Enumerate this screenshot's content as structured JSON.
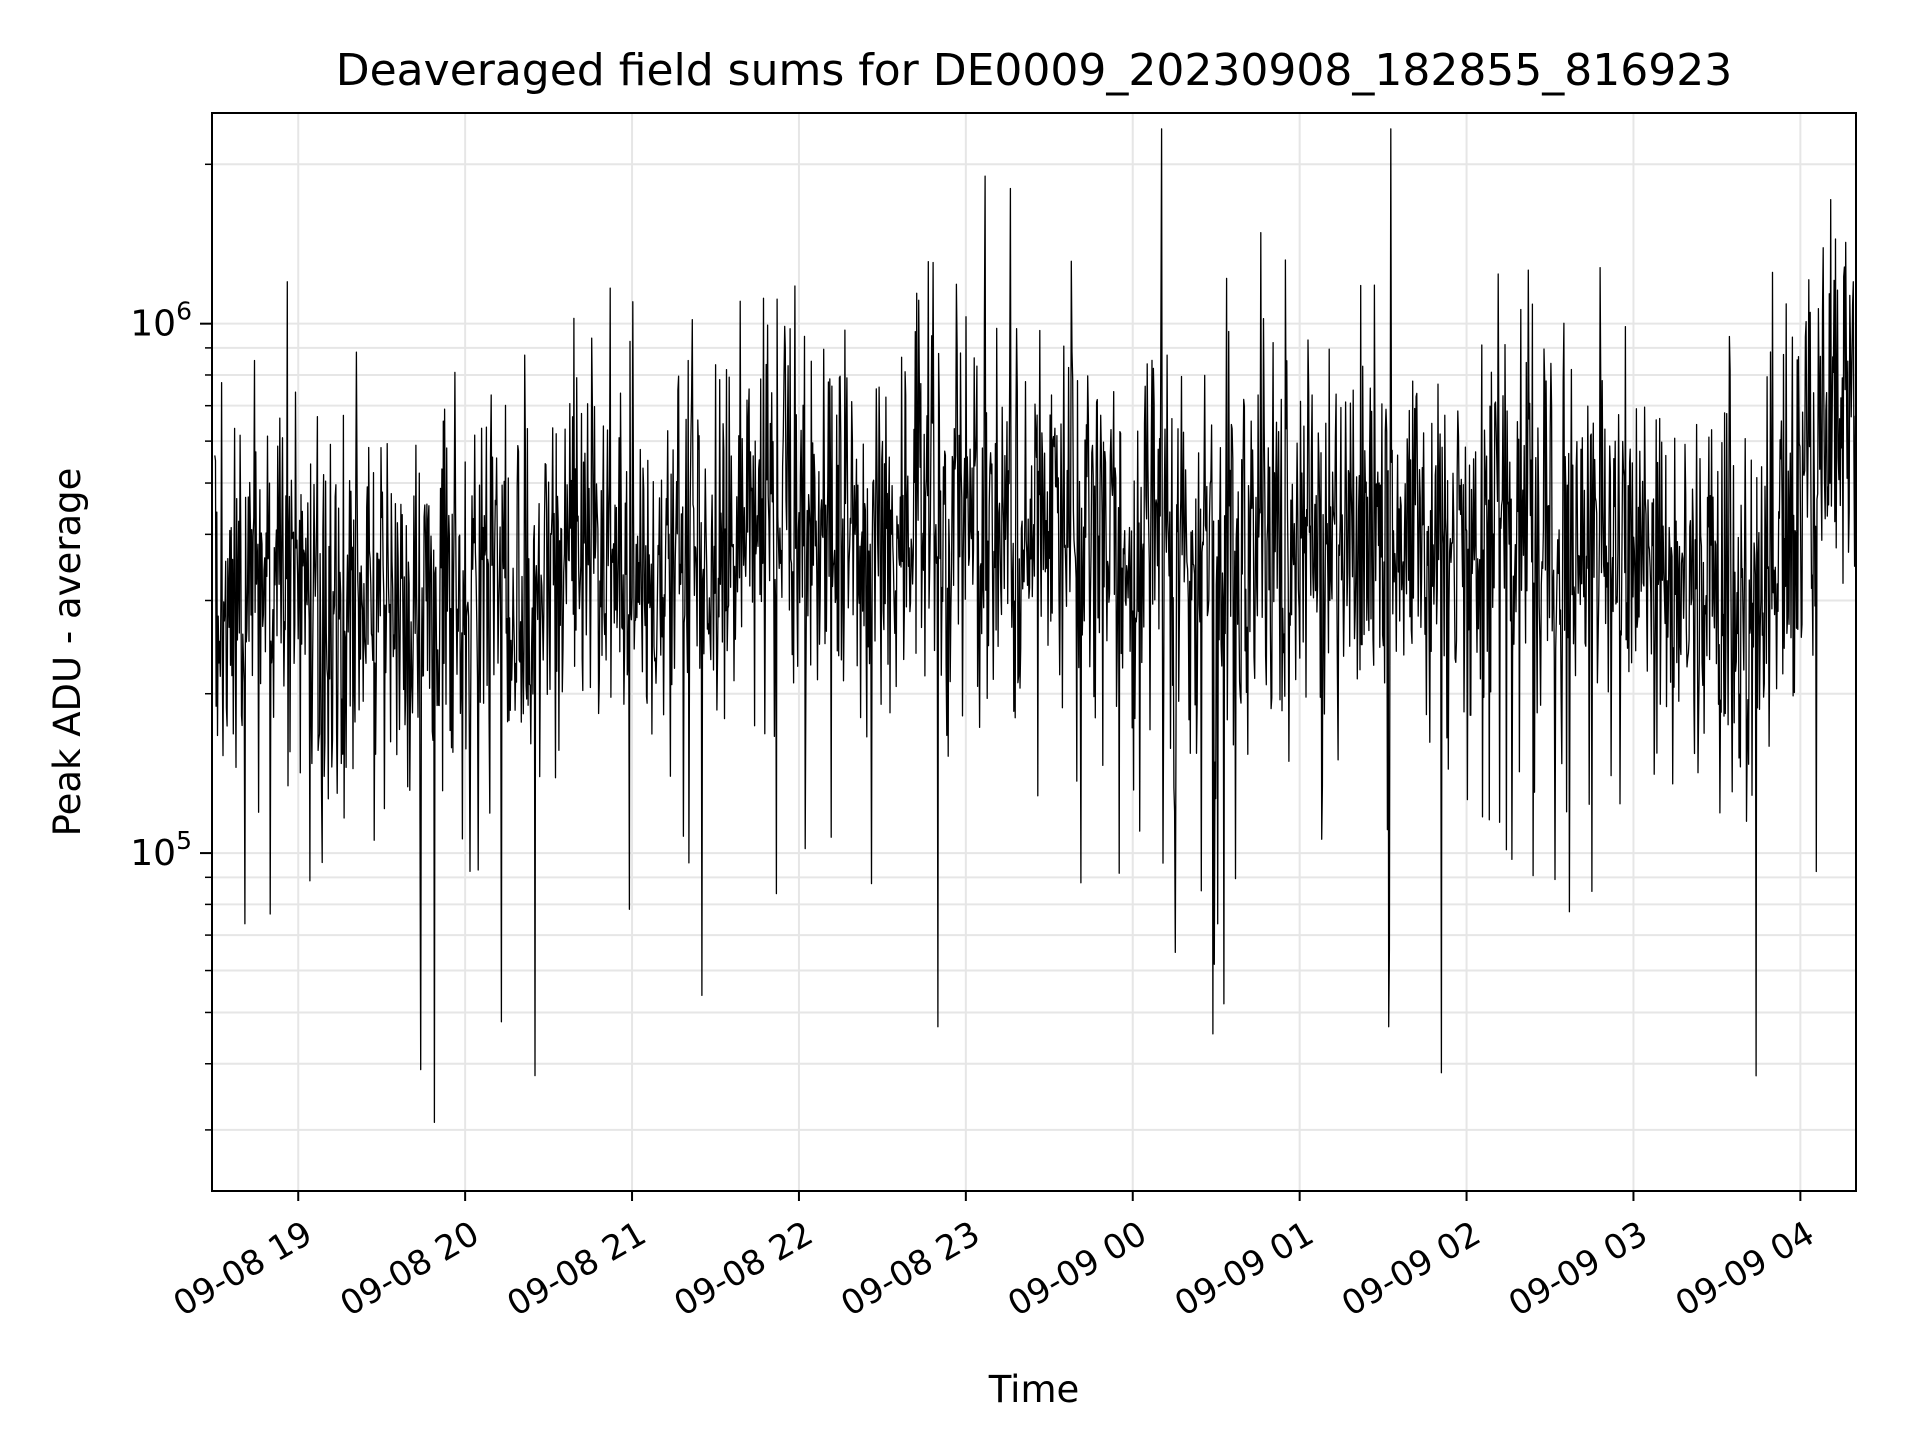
{
  "chart_data": {
    "type": "line",
    "title": "Deaveraged field sums for DE0009_20230908_182855_816923",
    "xlabel": "Time",
    "ylabel": "Peak ADU - average",
    "xlim": [
      "2023-09-08 18:29",
      "2023-09-09 04:20"
    ],
    "ylim": [
      23000,
      2500000
    ],
    "y_scale": "log",
    "grid": true,
    "line_color": "#000000",
    "grid_color": "#e6e6e6",
    "x_ticks": [
      {
        "t": "2023-09-08 19:00",
        "label": "09-08 19"
      },
      {
        "t": "2023-09-08 20:00",
        "label": "09-08 20"
      },
      {
        "t": "2023-09-08 21:00",
        "label": "09-08 21"
      },
      {
        "t": "2023-09-08 22:00",
        "label": "09-08 22"
      },
      {
        "t": "2023-09-08 23:00",
        "label": "09-08 23"
      },
      {
        "t": "2023-09-09 00:00",
        "label": "09-09 00"
      },
      {
        "t": "2023-09-09 01:00",
        "label": "09-09 01"
      },
      {
        "t": "2023-09-09 02:00",
        "label": "09-09 02"
      },
      {
        "t": "2023-09-09 03:00",
        "label": "09-09 03"
      },
      {
        "t": "2023-09-09 04:00",
        "label": "09-09 04"
      }
    ],
    "y_major_ticks": [
      {
        "value": 100000,
        "base": "10",
        "exp": "5"
      },
      {
        "value": 1000000,
        "base": "10",
        "exp": "6"
      }
    ],
    "y_minor_ticks": [
      30000,
      40000,
      50000,
      60000,
      70000,
      80000,
      90000,
      200000,
      300000,
      400000,
      500000,
      600000,
      700000,
      800000,
      900000,
      2000000
    ],
    "series": [
      {
        "x": [
          "2023-09-08 18:30",
          "2023-09-08 18:45",
          "2023-09-08 19:00",
          "2023-09-08 19:15",
          "2023-09-08 19:30",
          "2023-09-08 19:45",
          "2023-09-08 20:00",
          "2023-09-08 20:15",
          "2023-09-08 20:30",
          "2023-09-08 20:45",
          "2023-09-08 21:00",
          "2023-09-08 21:15",
          "2023-09-08 21:30",
          "2023-09-08 21:45",
          "2023-09-08 22:00",
          "2023-09-08 22:15",
          "2023-09-08 22:30",
          "2023-09-08 22:45",
          "2023-09-08 23:00",
          "2023-09-08 23:15",
          "2023-09-08 23:30",
          "2023-09-08 23:45",
          "2023-09-09 00:00",
          "2023-09-09 00:15",
          "2023-09-09 00:30",
          "2023-09-09 00:45",
          "2023-09-09 01:00",
          "2023-09-09 01:15",
          "2023-09-09 01:30",
          "2023-09-09 01:45",
          "2023-09-09 02:00",
          "2023-09-09 02:15",
          "2023-09-09 02:30",
          "2023-09-09 02:45",
          "2023-09-09 03:00",
          "2023-09-09 03:15",
          "2023-09-09 03:30",
          "2023-09-09 03:45",
          "2023-09-09 04:00",
          "2023-09-09 04:15"
        ],
        "y": [
          300000,
          350000,
          330000,
          280000,
          310000,
          290000,
          320000,
          300000,
          340000,
          360000,
          380000,
          390000,
          400000,
          410000,
          420000,
          410000,
          430000,
          420000,
          440000,
          450000,
          430000,
          420000,
          400000,
          380000,
          380000,
          390000,
          400000,
          400000,
          390000,
          380000,
          380000,
          390000,
          390000,
          380000,
          370000,
          350000,
          320000,
          300000,
          500000,
          620000
        ]
      }
    ],
    "notable_spikes": [
      {
        "t": "2023-09-08 18:56",
        "y": 1200000
      },
      {
        "t": "2023-09-08 23:07",
        "y": 1900000
      },
      {
        "t": "2023-09-08 23:16",
        "y": 1800000
      },
      {
        "t": "2023-09-09 03:50",
        "y": 1250000
      },
      {
        "t": "2023-09-09 04:19",
        "y": 1200000
      },
      {
        "t": "2023-09-08 19:49",
        "y": 31000
      },
      {
        "t": "2023-09-08 19:44",
        "y": 39000
      },
      {
        "t": "2023-09-08 20:25",
        "y": 38000
      },
      {
        "t": "2023-09-08 20:13",
        "y": 48000
      },
      {
        "t": "2023-09-08 22:50",
        "y": 47000
      },
      {
        "t": "2023-09-09 01:32",
        "y": 47000
      }
    ]
  }
}
